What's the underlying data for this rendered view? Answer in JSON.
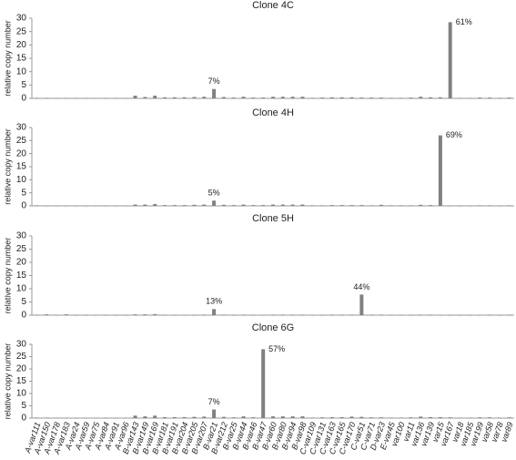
{
  "chart_data": [
    {
      "type": "bar",
      "title": "Clone 4C",
      "y_label": "relative copy number",
      "color": "#808080",
      "ylim": [
        0,
        30
      ],
      "yticks": [
        0,
        5,
        10,
        15,
        20,
        25,
        30
      ],
      "values": [
        0.2,
        0.2,
        0.1,
        0.1,
        0.1,
        0.1,
        0.1,
        0.1,
        0.1,
        0.1,
        1.0,
        0.5,
        1.0,
        0.4,
        0.4,
        0.4,
        0.5,
        0.6,
        3.5,
        0.5,
        0.3,
        0.6,
        0.3,
        0.3,
        0.6,
        0.6,
        0.6,
        0.6,
        0.2,
        0.3,
        0.4,
        0.4,
        0.4,
        0.3,
        0.3,
        0.3,
        0.2,
        0.2,
        0.3,
        0.6,
        0.4,
        0.4,
        28.5,
        0.1,
        0.1,
        0.3,
        0.3,
        0.2,
        0.3
      ],
      "annotations": [
        {
          "category": "B-var21",
          "text": "7%"
        },
        {
          "category": "var167",
          "text": "61%"
        }
      ]
    },
    {
      "type": "bar",
      "title": "Clone 4H",
      "y_label": "relative copy number",
      "color": "#808080",
      "ylim": [
        0,
        30
      ],
      "yticks": [
        0,
        5,
        10,
        15,
        20,
        25,
        30
      ],
      "values": [
        0.2,
        0.1,
        0.1,
        0.1,
        0.1,
        0.1,
        0.1,
        0.1,
        0.1,
        0.1,
        0.5,
        0.5,
        0.7,
        0.3,
        0.3,
        0.3,
        0.4,
        0.5,
        2.0,
        0.4,
        0.3,
        0.5,
        0.3,
        0.3,
        0.5,
        0.5,
        0.5,
        0.5,
        0.2,
        0.2,
        0.3,
        0.3,
        0.3,
        0.3,
        0.2,
        0.4,
        0.2,
        0.2,
        0.2,
        0.4,
        0.3,
        27.0,
        0.1,
        0.1,
        0.1,
        0.2,
        0.2,
        0.1,
        0.2
      ],
      "annotations": [
        {
          "category": "B-var21",
          "text": "5%"
        },
        {
          "category": "var15",
          "text": "69%"
        }
      ]
    },
    {
      "type": "bar",
      "title": "Clone 5H",
      "y_label": "relative copy number",
      "color": "#808080",
      "ylim": [
        0,
        30
      ],
      "yticks": [
        0,
        5,
        10,
        15,
        20,
        25,
        30
      ],
      "values": [
        0.1,
        0.3,
        0.1,
        0.3,
        0.1,
        0.1,
        0.1,
        0.1,
        0.1,
        0.1,
        0.3,
        0.3,
        0.4,
        0.1,
        0.1,
        0.1,
        0.1,
        0.2,
        2.3,
        0.2,
        0.1,
        0.2,
        0.1,
        0.1,
        0.2,
        0.2,
        0.2,
        0.2,
        0.1,
        0.1,
        0.2,
        0.2,
        0.2,
        7.8,
        0.2,
        0.2,
        0.1,
        0.1,
        0.1,
        0.2,
        0.2,
        0.1,
        0.1,
        0.1,
        0.1,
        0.1,
        0.2,
        0.1,
        0.2
      ],
      "annotations": [
        {
          "category": "B-var21",
          "text": "13%"
        },
        {
          "category": "C-var51",
          "text": "44%"
        }
      ]
    },
    {
      "type": "bar",
      "title": "Clone 6G",
      "y_label": "relative copy number",
      "color": "#808080",
      "ylim": [
        0,
        30
      ],
      "yticks": [
        0,
        5,
        10,
        15,
        20,
        25,
        30
      ],
      "categories": [
        "A-var111",
        "A-var150",
        "A-var178",
        "A-var183",
        "A-var24",
        "A-var59",
        "A-var75",
        "A-var84",
        "A-var91",
        "A-var96",
        "B-var143",
        "B-var149",
        "B-var169",
        "B-var181",
        "B-var191",
        "B-var204",
        "B-var205",
        "B-var207",
        "B-var21",
        "B-var212",
        "B-var25",
        "B-var44",
        "B-var46",
        "B-var47",
        "B-var60",
        "B-var80",
        "B-var94",
        "B-var98",
        "C-var109",
        "C-var131",
        "C-var163",
        "C-var165",
        "C-var170",
        "C-var51",
        "C-var71",
        "D-var23",
        "E-var45",
        "var100",
        "var11",
        "var136",
        "var139",
        "var15",
        "var167",
        "var18",
        "var185",
        "var199",
        "var58",
        "var78",
        "var89"
      ],
      "values": [
        0.2,
        0.2,
        0.1,
        0.1,
        0.1,
        0.1,
        0.1,
        0.1,
        0.1,
        0.1,
        1.0,
        0.7,
        1.0,
        0.4,
        0.4,
        0.4,
        0.5,
        0.6,
        3.5,
        0.5,
        0.3,
        0.7,
        0.3,
        28.0,
        0.7,
        0.7,
        0.7,
        0.7,
        0.2,
        0.3,
        0.4,
        0.4,
        0.6,
        0.5,
        0.3,
        0.3,
        0.2,
        0.2,
        0.3,
        0.6,
        0.4,
        0.4,
        0.3,
        0.1,
        0.1,
        0.3,
        0.3,
        0.2,
        0.3
      ],
      "annotations": [
        {
          "category": "B-var21",
          "text": "7%"
        },
        {
          "category": "B-var47",
          "text": "57%"
        }
      ]
    }
  ]
}
